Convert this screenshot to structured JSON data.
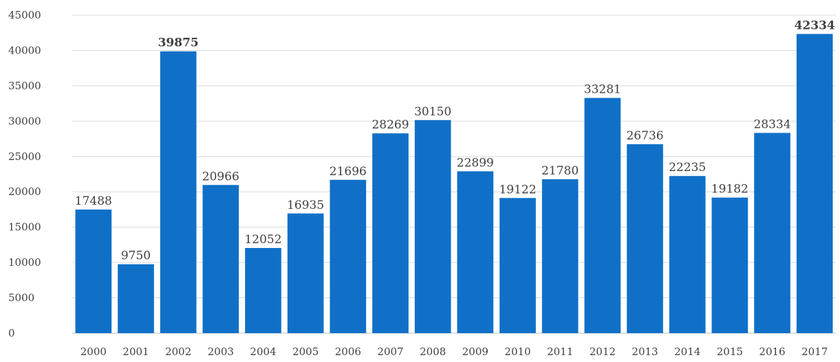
{
  "chart_data": {
    "type": "bar",
    "title": "",
    "xlabel": "",
    "ylabel": "",
    "categories": [
      "2000",
      "2001",
      "2002",
      "2003",
      "2004",
      "2005",
      "2006",
      "2007",
      "2008",
      "2009",
      "2010",
      "2011",
      "2012",
      "2013",
      "2014",
      "2015",
      "2016",
      "2017"
    ],
    "values": [
      17488,
      9750,
      39875,
      20966,
      12052,
      16935,
      21696,
      28269,
      30150,
      22899,
      19122,
      21780,
      33281,
      26736,
      22235,
      19182,
      28334,
      42334
    ],
    "data_labels": [
      "17488",
      "9750",
      "39875",
      "20966",
      "12052",
      "16935",
      "21696",
      "28269",
      "30150",
      "22899",
      "19122",
      "21780",
      "33281",
      "26736",
      "22235",
      "19182",
      "28334",
      "42334"
    ],
    "y_ticks": [
      0,
      5000,
      10000,
      15000,
      20000,
      25000,
      30000,
      35000,
      40000,
      45000
    ],
    "y_tick_labels": [
      "0",
      "5000",
      "10000",
      "15000",
      "20000",
      "25000",
      "30000",
      "35000",
      "40000",
      "45000"
    ],
    "ylim": [
      0,
      45000
    ],
    "grid": true,
    "legend": "none",
    "colors": {
      "bar": "#1070c8",
      "label": "#404040",
      "highlight_2002": "#6e8c2a",
      "highlight_2017": "#e8141e",
      "grid": "#d9d9d9"
    },
    "highlights": [
      {
        "category": "2002",
        "color": "#6e8c2a"
      },
      {
        "category": "2017",
        "color": "#e8141e"
      }
    ]
  }
}
